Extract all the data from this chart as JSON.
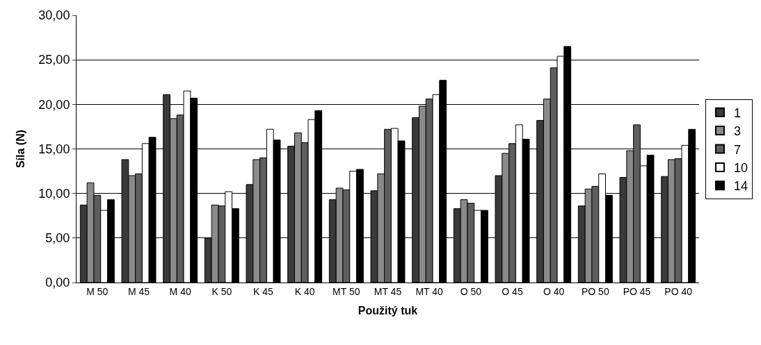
{
  "chart_data": {
    "type": "bar",
    "xlabel": "Použitý tuk",
    "ylabel": "Síla (N)",
    "categories": [
      "M 50",
      "M 45",
      "M 40",
      "K 50",
      "K 45",
      "K 40",
      "MT 50",
      "MT 45",
      "MT 40",
      "O 50",
      "O 45",
      "O 40",
      "PO 50",
      "PO 45",
      "PO 40"
    ],
    "series": [
      {
        "name": "1",
        "color": "#3a3a3a",
        "values": [
          8.7,
          13.8,
          21.1,
          5.0,
          11.0,
          15.3,
          9.3,
          10.3,
          18.5,
          8.3,
          12.0,
          18.2,
          8.6,
          11.8,
          11.9
        ]
      },
      {
        "name": "3",
        "color": "#8a8a8a",
        "values": [
          11.2,
          12.0,
          18.4,
          8.7,
          13.8,
          16.8,
          10.6,
          12.2,
          19.8,
          9.3,
          14.5,
          20.6,
          10.5,
          14.8,
          13.8
        ]
      },
      {
        "name": "7",
        "color": "#5e5e5e",
        "values": [
          9.8,
          12.2,
          18.8,
          8.6,
          14.0,
          15.7,
          10.4,
          17.2,
          20.6,
          8.9,
          15.6,
          24.1,
          10.8,
          17.7,
          13.9
        ]
      },
      {
        "name": "10",
        "color": "#ffffff",
        "values": [
          8.1,
          15.6,
          21.5,
          10.2,
          17.2,
          18.3,
          12.5,
          17.3,
          21.1,
          8.1,
          17.7,
          25.4,
          12.2,
          13.1,
          15.4
        ]
      },
      {
        "name": "14",
        "color": "#000000",
        "values": [
          9.3,
          16.3,
          20.7,
          8.3,
          16.0,
          19.3,
          12.7,
          15.9,
          22.7,
          8.1,
          16.1,
          26.5,
          9.8,
          14.3,
          17.2
        ]
      }
    ],
    "ylim": [
      0,
      30
    ],
    "yticks": [
      {
        "value": 0,
        "label": "0,00"
      },
      {
        "value": 5,
        "label": "5,00"
      },
      {
        "value": 10,
        "label": "10,00"
      },
      {
        "value": 15,
        "label": "15,00"
      },
      {
        "value": 20,
        "label": "20,00"
      },
      {
        "value": 25,
        "label": "25,00"
      },
      {
        "value": 30,
        "label": "30,00"
      }
    ],
    "grid": "y",
    "legend": "right"
  }
}
